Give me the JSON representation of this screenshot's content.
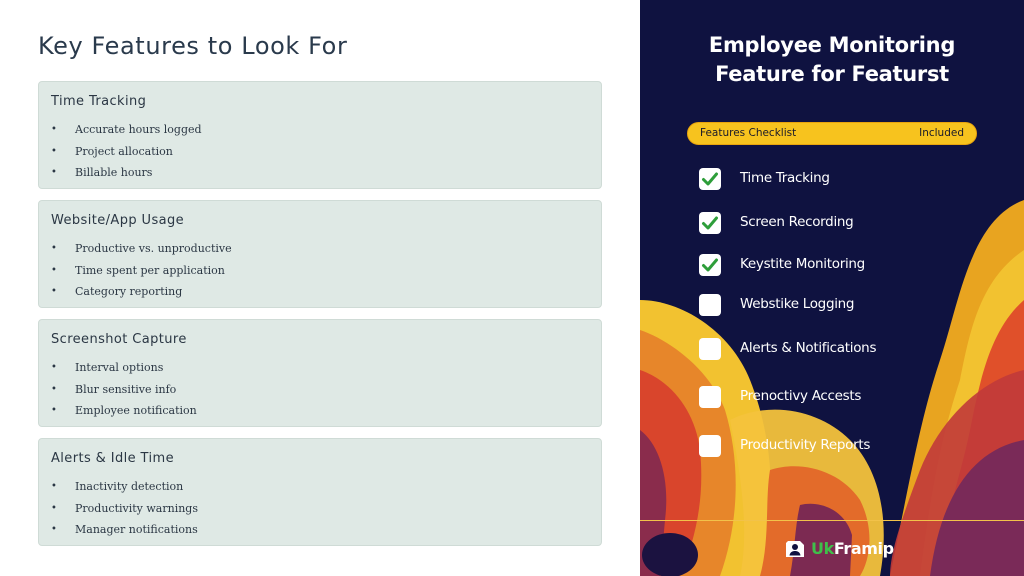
{
  "page": {
    "title": "Key Features to Look For"
  },
  "cards": [
    {
      "title": "Time Tracking",
      "items": [
        "Accurate hours logged",
        "Project allocation",
        "Billable hours"
      ]
    },
    {
      "title": "Website/App Usage",
      "items": [
        "Productive vs. unproductive",
        "Time spent per application",
        "Category reporting"
      ]
    },
    {
      "title": "Screenshot Capture",
      "items": [
        "Interval options",
        "Blur sensitive info",
        "Employee notification"
      ]
    },
    {
      "title": "Alerts & Idle Time",
      "items": [
        "Inactivity detection",
        "Productivity warnings",
        "Manager notifications"
      ]
    }
  ],
  "bullet": "•",
  "poster": {
    "title_line1": "Employee Monitoring",
    "title_line2": "Feature for Featurst",
    "checklist_header": "Features Checklist",
    "checklist_status": "Included",
    "checklist": [
      {
        "label": "Time Tracking",
        "checked": true
      },
      {
        "label": "Screen Recording",
        "checked": true
      },
      {
        "label": "Keystite Monitoring",
        "checked": true
      },
      {
        "label": "Webstike Logging",
        "checked": false
      },
      {
        "label": "Alerts & Notifications",
        "checked": false
      },
      {
        "label": "Prenoctivy Accests",
        "checked": false
      },
      {
        "label": "Productivity Reports",
        "checked": false
      }
    ],
    "logo_text_accent": "Uk",
    "logo_text_rest": "Framip",
    "logo_icon": "user-badge-icon",
    "colors": {
      "background": "#0f1240",
      "header_bar": "#f7c31e",
      "check": "#2e9e3a",
      "logo_accent": "#3fbf4a"
    }
  }
}
